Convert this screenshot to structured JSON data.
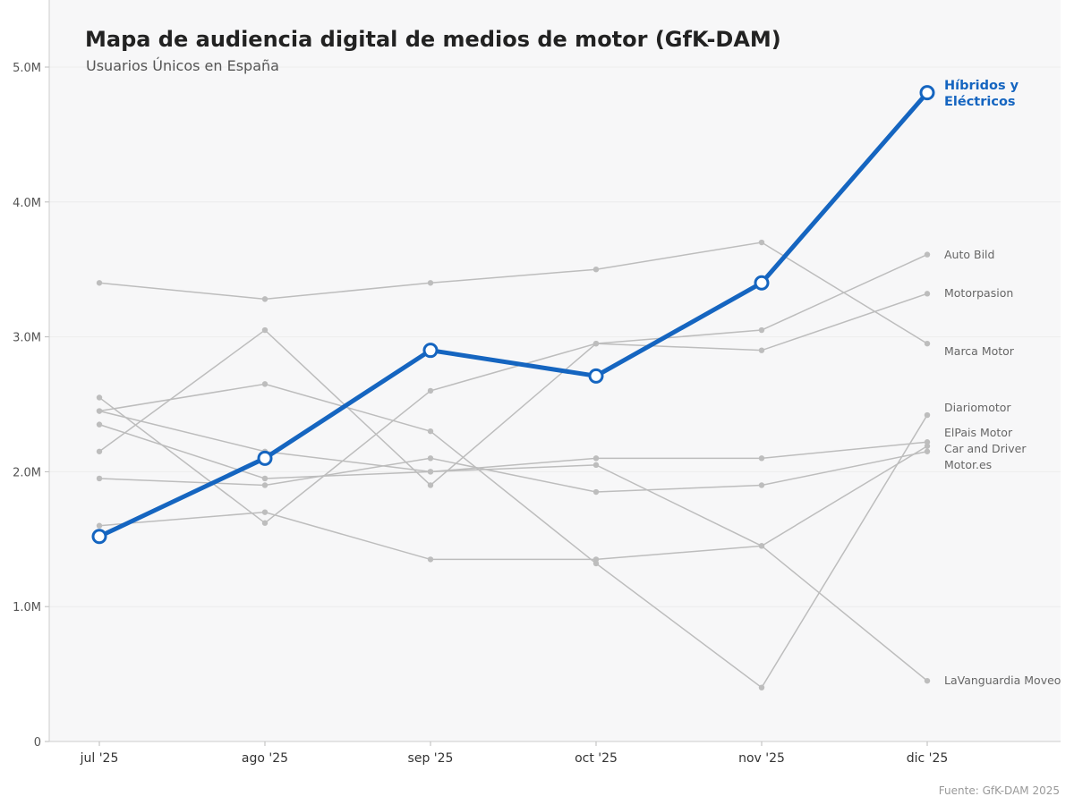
{
  "chart_data": {
    "type": "line",
    "title": "Mapa de audiencia digital de medios de motor (GfK-DAM)",
    "subtitle": "Usuarios Únicos en España",
    "source": "Fuente: GfK-DAM 2025",
    "categories": [
      "jul '25",
      "ago '25",
      "sep '25",
      "oct '25",
      "nov '25",
      "dic '25"
    ],
    "ylim": [
      0,
      5.0
    ],
    "yticks": [
      0,
      1,
      2,
      3,
      4,
      5
    ],
    "ytick_labels": [
      "0",
      "1.0M",
      "2.0M",
      "3.0M",
      "4.0M",
      "5.0M"
    ],
    "unit": "millones de usuarios",
    "grid": true,
    "highlight": {
      "name": "Híbridos y Eléctricos",
      "label_lines": [
        "Híbridos y",
        "Eléctricos"
      ],
      "color": "#1565c0",
      "values": [
        1.52,
        2.1,
        2.9,
        2.71,
        3.4,
        4.81
      ]
    },
    "series_color": "#bdbdbd",
    "series": [
      {
        "name": "Auto Bild",
        "values": [
          2.55,
          1.62,
          2.6,
          2.95,
          3.05,
          3.61
        ]
      },
      {
        "name": "Motorpasion",
        "values": [
          2.15,
          3.05,
          1.9,
          2.95,
          2.9,
          3.32
        ]
      },
      {
        "name": "Marca Motor",
        "values": [
          3.4,
          3.28,
          3.4,
          3.5,
          3.7,
          2.95
        ]
      },
      {
        "name": "Diariomotor",
        "values": [
          2.45,
          2.65,
          2.3,
          1.32,
          0.4,
          2.42
        ]
      },
      {
        "name": "ElPais Motor",
        "values": [
          2.45,
          2.15,
          2.0,
          2.1,
          2.1,
          2.22
        ]
      },
      {
        "name": "Car and Driver",
        "values": [
          2.35,
          1.95,
          2.0,
          2.05,
          1.45,
          2.19
        ]
      },
      {
        "name": "Motor.es",
        "values": [
          1.95,
          1.9,
          2.1,
          1.85,
          1.9,
          2.15
        ]
      },
      {
        "name": "LaVanguardia Moveo",
        "values": [
          1.6,
          1.7,
          1.35,
          1.35,
          1.45,
          0.45
        ]
      }
    ]
  }
}
